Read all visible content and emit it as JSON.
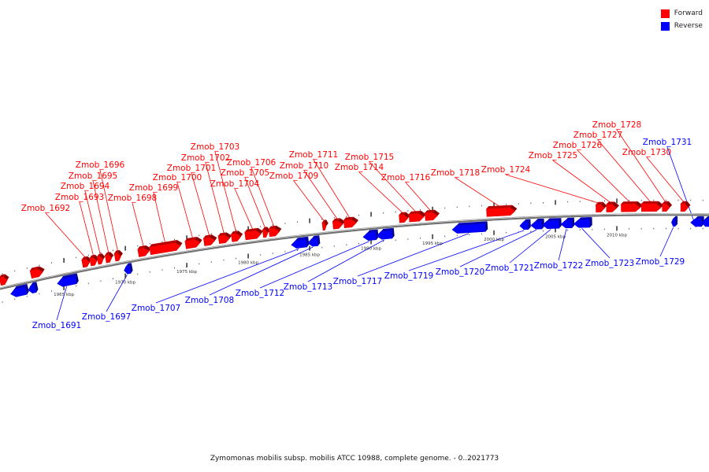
{
  "colors": {
    "forward": "#ff0000",
    "reverse": "#0000ff",
    "axis": "#888888"
  },
  "legend": [
    {
      "label": "Forward",
      "color": "#ff0000"
    },
    {
      "label": "Reverse",
      "color": "#0000ff"
    }
  ],
  "caption": "Zymomonas mobilis subsp. mobilis ATCC 10988, complete genome. - 0..2021773",
  "view_kbp": [
    1959.8,
    2017.5
  ],
  "ticks_kbp": [
    1965,
    1970,
    1975,
    1980,
    1985,
    1990,
    1995,
    2000,
    2005,
    2010
  ],
  "tick_labels": [
    "1965 kbp",
    "1970 kbp",
    "1975 kbp",
    "1980 kbp",
    "1985 kbp",
    "1990 kbp",
    "1995 kbp",
    "2000 kbp",
    "2005 kbp",
    "2010 kbp"
  ],
  "genes": [
    {
      "name": "",
      "strand": "+",
      "start": 1959.8,
      "end": 1960.4
    },
    {
      "name": "",
      "strand": "+",
      "start": 1962.3,
      "end": 1963.3
    },
    {
      "name": "",
      "strand": "-",
      "start": 1960.65,
      "end": 1961.95
    },
    {
      "name": "",
      "strand": "-",
      "start": 1962.1,
      "end": 1962.7
    },
    {
      "name": "Zmob_1691",
      "strand": "-",
      "start": 1964.45,
      "end": 1966.0
    },
    {
      "name": "Zmob_1692",
      "strand": "+",
      "start": 1966.5,
      "end": 1967.1
    },
    {
      "name": "Zmob_1693",
      "strand": "+",
      "start": 1967.15,
      "end": 1967.7
    },
    {
      "name": "Zmob_1694",
      "strand": "+",
      "start": 1967.75,
      "end": 1968.2
    },
    {
      "name": "Zmob_1695",
      "strand": "+",
      "start": 1968.4,
      "end": 1968.9
    },
    {
      "name": "Zmob_1696",
      "strand": "+",
      "start": 1969.15,
      "end": 1969.65
    },
    {
      "name": "Zmob_1697",
      "strand": "-",
      "start": 1969.9,
      "end": 1970.4
    },
    {
      "name": "Zmob_1698",
      "strand": "+",
      "start": 1971.05,
      "end": 1971.95
    },
    {
      "name": "Zmob_1699",
      "strand": "+",
      "start": 1972.0,
      "end": 1974.5
    },
    {
      "name": "Zmob_1700",
      "strand": "+",
      "start": 1974.9,
      "end": 1976.1
    },
    {
      "name": "Zmob_1701",
      "strand": "+",
      "start": 1976.4,
      "end": 1977.3
    },
    {
      "name": "Zmob_1702",
      "strand": "+",
      "start": 1977.6,
      "end": 1978.5
    },
    {
      "name": "Zmob_1703",
      "strand": "+",
      "start": 1978.65,
      "end": 1979.4
    },
    {
      "name": "Zmob_1704",
      "strand": "+",
      "start": 1979.75,
      "end": 1981.05
    },
    {
      "name": "Zmob_1705",
      "strand": "+",
      "start": 1981.2,
      "end": 1981.6
    },
    {
      "name": "Zmob_1706",
      "strand": "+",
      "start": 1981.7,
      "end": 1982.55
    },
    {
      "name": "Zmob_1707",
      "strand": "-",
      "start": 1983.5,
      "end": 1984.75
    },
    {
      "name": "Zmob_1708",
      "strand": "-",
      "start": 1984.85,
      "end": 1985.65
    },
    {
      "name": "Zmob_1709",
      "strand": "+",
      "start": 1986.05,
      "end": 1986.35
    },
    {
      "name": "Zmob_1710",
      "strand": "+",
      "start": 1986.9,
      "end": 1987.7
    },
    {
      "name": "Zmob_1711",
      "strand": "+",
      "start": 1987.8,
      "end": 1988.8
    },
    {
      "name": "Zmob_1712",
      "strand": "-",
      "start": 1989.35,
      "end": 1990.4
    },
    {
      "name": "Zmob_1713",
      "strand": "-",
      "start": 1990.45,
      "end": 1991.7
    },
    {
      "name": "Zmob_1714",
      "strand": "+",
      "start": 1992.3,
      "end": 1993.0
    },
    {
      "name": "Zmob_1715",
      "strand": "+",
      "start": 1993.1,
      "end": 1994.3
    },
    {
      "name": "Zmob_1716",
      "strand": "+",
      "start": 1994.4,
      "end": 1995.4
    },
    {
      "name": "Zmob_1717",
      "strand": "-",
      "start": 1996.6,
      "end": 1999.3
    },
    {
      "name": "Zmob_1718",
      "strand": "+",
      "start": 1999.4,
      "end": 2001.7
    },
    {
      "name": "Zmob_1719",
      "strand": "-",
      "start": 2002.1,
      "end": 2002.8
    },
    {
      "name": "Zmob_1720",
      "strand": "-",
      "start": 2003.0,
      "end": 2003.9
    },
    {
      "name": "Zmob_1721",
      "strand": "-",
      "start": 2003.95,
      "end": 2005.3
    },
    {
      "name": "Zmob_1722",
      "strand": "-",
      "start": 2005.45,
      "end": 2006.35
    },
    {
      "name": "Zmob_1723",
      "strand": "-",
      "start": 2006.5,
      "end": 2007.8
    },
    {
      "name": "Zmob_1724",
      "strand": "+",
      "start": 2008.3,
      "end": 2009.0
    },
    {
      "name": "Zmob_1725",
      "strand": "+",
      "start": 2009.15,
      "end": 2010.0
    },
    {
      "name": "Zmob_1726",
      "strand": "+",
      "start": 2010.35,
      "end": 2011.9
    },
    {
      "name": "Zmob_1727",
      "strand": "+",
      "start": 2012.0,
      "end": 2013.6
    },
    {
      "name": "Zmob_1728",
      "strand": "+",
      "start": 2013.7,
      "end": 2014.3
    },
    {
      "name": "Zmob_1729",
      "strand": "-",
      "start": 2014.45,
      "end": 2014.75
    },
    {
      "name": "Zmob_1730",
      "strand": "+",
      "start": 2015.2,
      "end": 2015.8
    },
    {
      "name": "Zmob_1731",
      "strand": "-",
      "start": 2016.0,
      "end": 2016.9
    },
    {
      "name": "",
      "strand": "-",
      "start": 2016.95,
      "end": 2017.5
    }
  ]
}
